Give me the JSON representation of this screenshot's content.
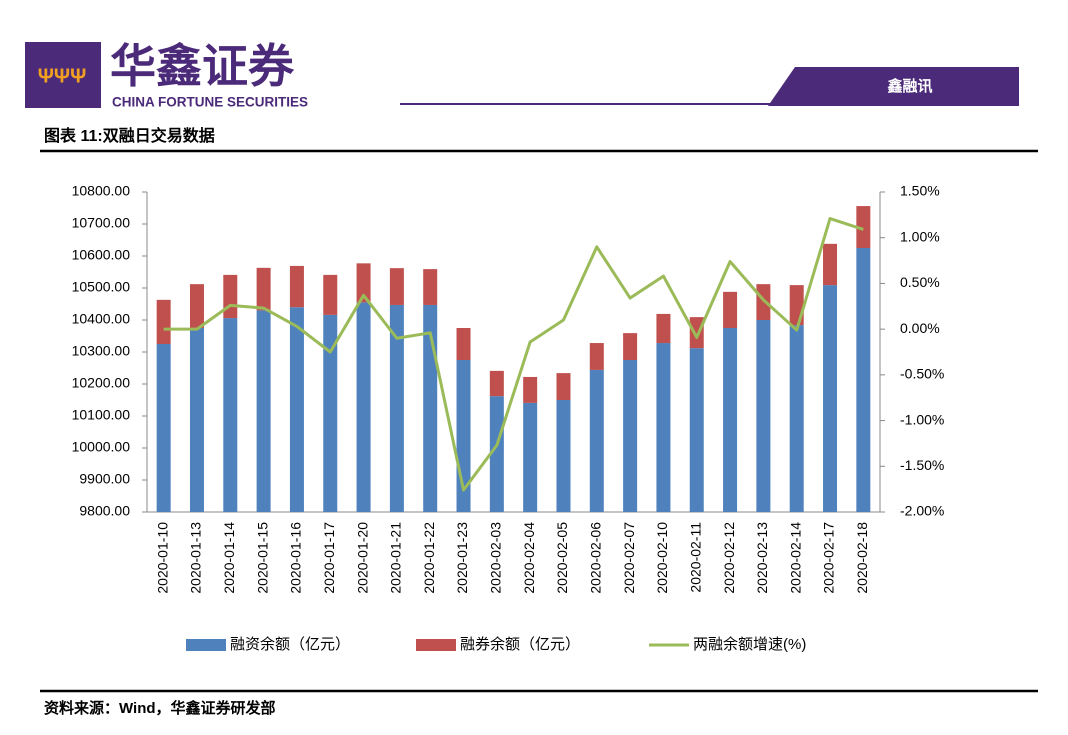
{
  "brand": {
    "name": "华鑫证券",
    "english": "CHINA FORTUNE SECURITIES",
    "tag": "鑫融讯"
  },
  "figure_title": "图表 11:双融日交易数据",
  "source": "资料来源：Wind，华鑫证券研发部",
  "chart_data": {
    "type": "bar",
    "stacked": true,
    "categories": [
      "2020-01-10",
      "2020-01-13",
      "2020-01-14",
      "2020-01-15",
      "2020-01-16",
      "2020-01-17",
      "2020-01-20",
      "2020-01-21",
      "2020-01-22",
      "2020-01-23",
      "2020-02-03",
      "2020-02-04",
      "2020-02-05",
      "2020-02-06",
      "2020-02-07",
      "2020-02-10",
      "2020-02-11",
      "2020-02-12",
      "2020-02-13",
      "2020-02-14",
      "2020-02-17",
      "2020-02-18"
    ],
    "series": [
      {
        "name": "融资余额（亿元）",
        "type": "bar",
        "color": "#4f81bd",
        "values": [
          10325,
          10375,
          10406,
          10430,
          10440,
          10416,
          10455,
          10447,
          10447,
          10275,
          10162,
          10141,
          10150,
          10244,
          10275,
          10328,
          10312,
          10375,
          10400,
          10384,
          10509,
          10625
        ]
      },
      {
        "name": "融券余额（亿元）",
        "type": "bar",
        "color": "#c0504d",
        "values": [
          138,
          137,
          135,
          133,
          129,
          125,
          122,
          115,
          112,
          100,
          79,
          81,
          84,
          84,
          84,
          91,
          97,
          113,
          112,
          125,
          129,
          131
        ]
      },
      {
        "name": "两融余额增速(%)",
        "type": "line",
        "axis": "y2",
        "color": "#9bbb59",
        "values": [
          0.0,
          0.0,
          0.26,
          0.23,
          0.03,
          -0.25,
          0.37,
          -0.1,
          -0.04,
          -1.76,
          -1.27,
          -0.14,
          0.1,
          0.9,
          0.34,
          0.58,
          -0.09,
          0.74,
          0.32,
          -0.01,
          1.21,
          1.09
        ]
      }
    ],
    "ylim": [
      9800,
      10800
    ],
    "yticks": [
      {
        "value": 9800,
        "label": "9800.00"
      },
      {
        "value": 9900,
        "label": "9900.00"
      },
      {
        "value": 10000,
        "label": "10000.00"
      },
      {
        "value": 10100,
        "label": "10100.00"
      },
      {
        "value": 10200,
        "label": "10200.00"
      },
      {
        "value": 10300,
        "label": "10300.00"
      },
      {
        "value": 10400,
        "label": "10400.00"
      },
      {
        "value": 10500,
        "label": "10500.00"
      },
      {
        "value": 10600,
        "label": "10600.00"
      },
      {
        "value": 10700,
        "label": "10700.00"
      },
      {
        "value": 10800,
        "label": "10800.00"
      }
    ],
    "y2lim": [
      -2,
      1.5
    ],
    "y2ticks": [
      {
        "value": -2,
        "label": "-2.00%"
      },
      {
        "value": -1.5,
        "label": "-1.50%"
      },
      {
        "value": -1,
        "label": "-1.00%"
      },
      {
        "value": -0.5,
        "label": "-0.50%"
      },
      {
        "value": 0,
        "label": "0.00%"
      },
      {
        "value": 0.5,
        "label": "0.50%"
      },
      {
        "value": 1,
        "label": "1.00%"
      },
      {
        "value": 1.5,
        "label": "1.50%"
      }
    ],
    "grid": false,
    "legend": "bottom"
  }
}
